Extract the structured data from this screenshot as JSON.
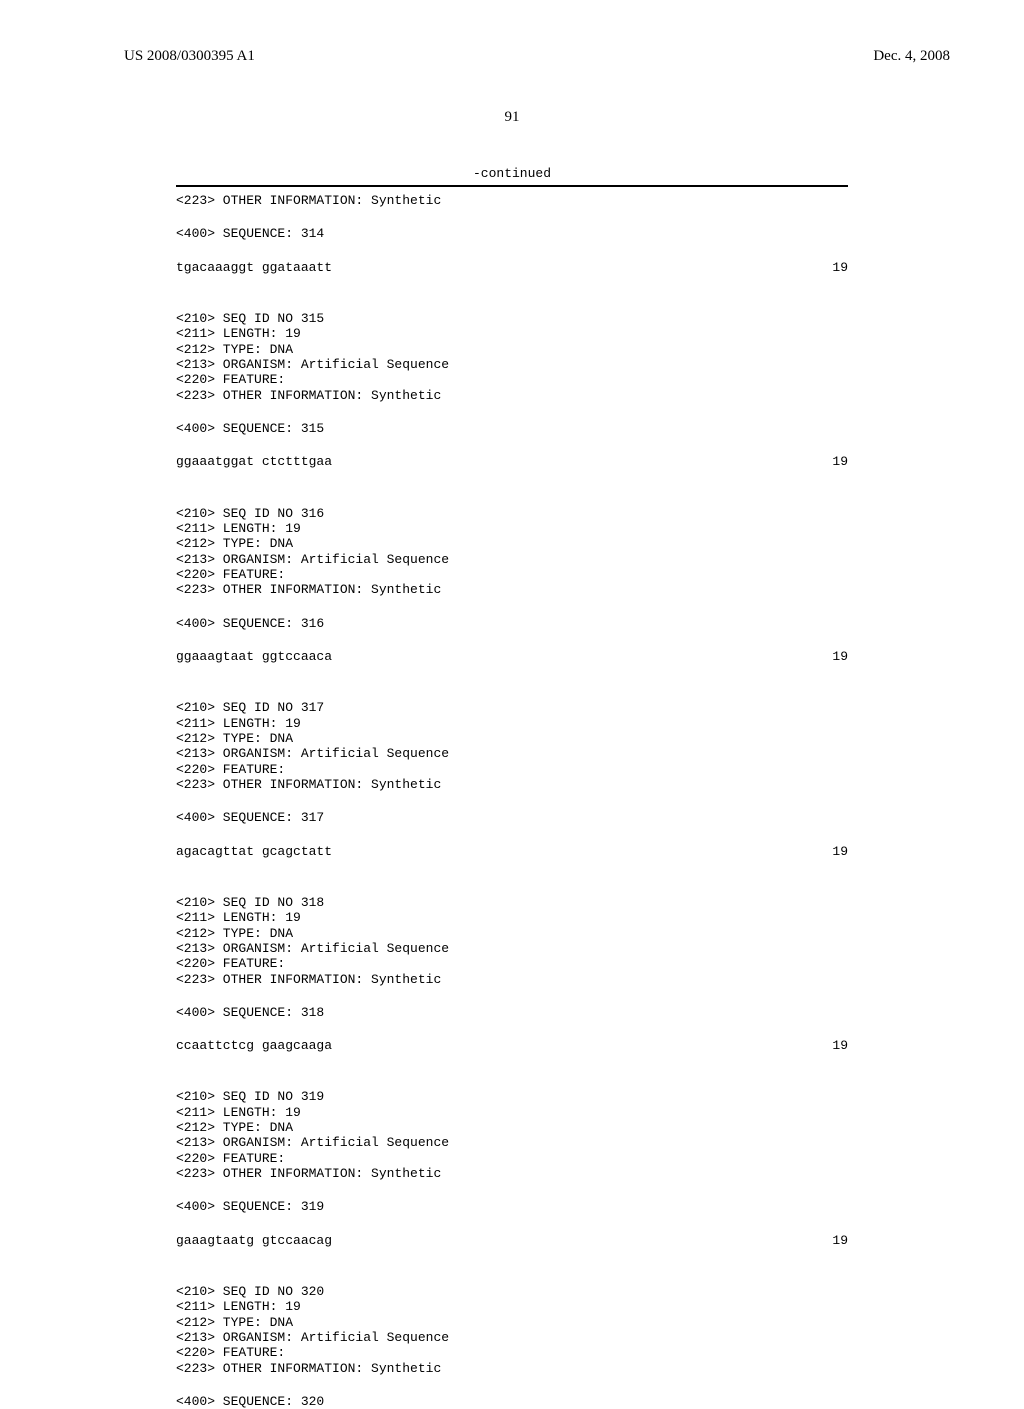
{
  "header": {
    "pub_number": "US 2008/0300395 A1",
    "pub_date": "Dec. 4, 2008",
    "page_number": "91",
    "continued_label": "-continued"
  },
  "entries": [
    {
      "info_lines": [
        "<223> OTHER INFORMATION: Synthetic"
      ],
      "seq_label": "<400> SEQUENCE: 314",
      "sequence": "tgacaaaggt ggataaatt",
      "length": "19"
    },
    {
      "info_lines": [
        "<210> SEQ ID NO 315",
        "<211> LENGTH: 19",
        "<212> TYPE: DNA",
        "<213> ORGANISM: Artificial Sequence",
        "<220> FEATURE:",
        "<223> OTHER INFORMATION: Synthetic"
      ],
      "seq_label": "<400> SEQUENCE: 315",
      "sequence": "ggaaatggat ctctttgaa",
      "length": "19"
    },
    {
      "info_lines": [
        "<210> SEQ ID NO 316",
        "<211> LENGTH: 19",
        "<212> TYPE: DNA",
        "<213> ORGANISM: Artificial Sequence",
        "<220> FEATURE:",
        "<223> OTHER INFORMATION: Synthetic"
      ],
      "seq_label": "<400> SEQUENCE: 316",
      "sequence": "ggaaagtaat ggtccaaca",
      "length": "19"
    },
    {
      "info_lines": [
        "<210> SEQ ID NO 317",
        "<211> LENGTH: 19",
        "<212> TYPE: DNA",
        "<213> ORGANISM: Artificial Sequence",
        "<220> FEATURE:",
        "<223> OTHER INFORMATION: Synthetic"
      ],
      "seq_label": "<400> SEQUENCE: 317",
      "sequence": "agacagttat gcagctatt",
      "length": "19"
    },
    {
      "info_lines": [
        "<210> SEQ ID NO 318",
        "<211> LENGTH: 19",
        "<212> TYPE: DNA",
        "<213> ORGANISM: Artificial Sequence",
        "<220> FEATURE:",
        "<223> OTHER INFORMATION: Synthetic"
      ],
      "seq_label": "<400> SEQUENCE: 318",
      "sequence": "ccaattctcg gaagcaaga",
      "length": "19"
    },
    {
      "info_lines": [
        "<210> SEQ ID NO 319",
        "<211> LENGTH: 19",
        "<212> TYPE: DNA",
        "<213> ORGANISM: Artificial Sequence",
        "<220> FEATURE:",
        "<223> OTHER INFORMATION: Synthetic"
      ],
      "seq_label": "<400> SEQUENCE: 319",
      "sequence": "gaaagtaatg gtccaacag",
      "length": "19"
    },
    {
      "info_lines": [
        "<210> SEQ ID NO 320",
        "<211> LENGTH: 19",
        "<212> TYPE: DNA",
        "<213> ORGANISM: Artificial Sequence",
        "<220> FEATURE:",
        "<223> OTHER INFORMATION: Synthetic"
      ],
      "seq_label": "<400> SEQUENCE: 320",
      "sequence": null,
      "length": null
    }
  ]
}
